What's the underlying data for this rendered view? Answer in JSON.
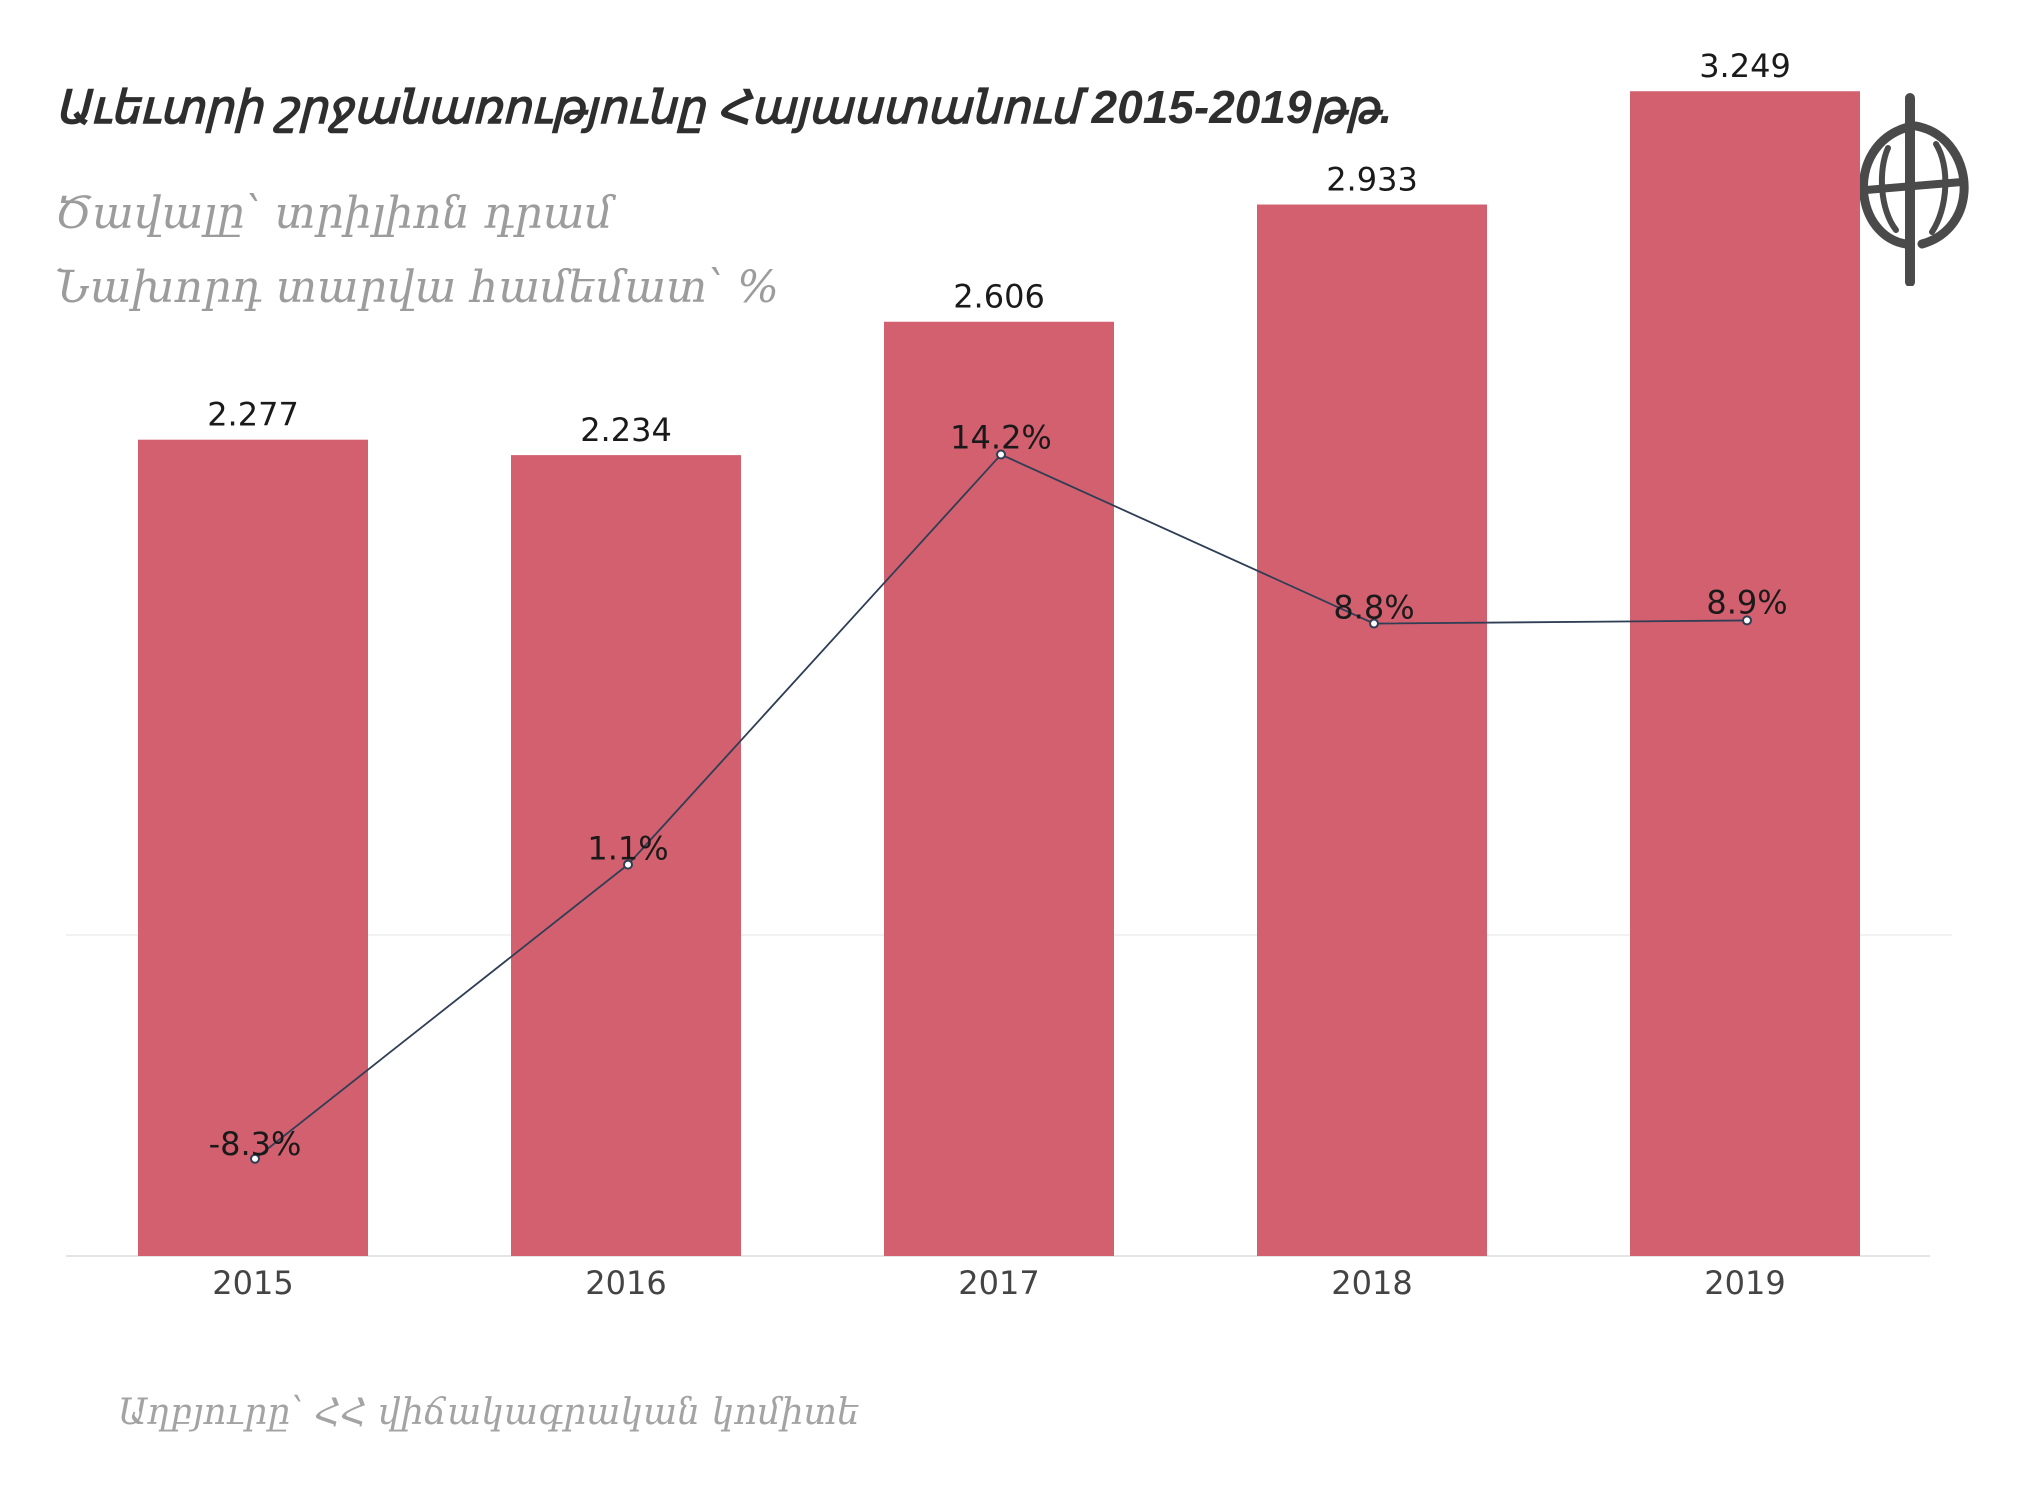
{
  "title": "Աւեւտրի շրջանառությունը Հայաստանում 2015-2019թթ.",
  "subtitle_1": "Ծավալը՝ տրիլիոն դրամ",
  "subtitle_2": "Նախորդ տարվա համեմատ՝ %",
  "source": "Աղբյուրը՝ ՀՀ վիճակագրական կոմիտե",
  "colors": {
    "bar": "#d3606f",
    "line": "#2f3e55",
    "axis": "#e4e4e4"
  },
  "logo_icon": "globe-emblem-icon",
  "chart_data": {
    "type": "bar",
    "categories": [
      "2015",
      "2016",
      "2017",
      "2018",
      "2019"
    ],
    "series": [
      {
        "type": "bar",
        "values": [
          2.277,
          2.234,
          2.606,
          2.933,
          3.249
        ],
        "labels": [
          "2.277",
          "2.234",
          "2.606",
          "2.933",
          "3.249"
        ]
      },
      {
        "type": "line",
        "values": [
          -8.3,
          1.1,
          14.2,
          8.8,
          8.9
        ],
        "labels": [
          "-8.3%",
          "1.1%",
          "14.2%",
          "8.8%",
          "8.9%"
        ]
      }
    ],
    "grid": false
  }
}
